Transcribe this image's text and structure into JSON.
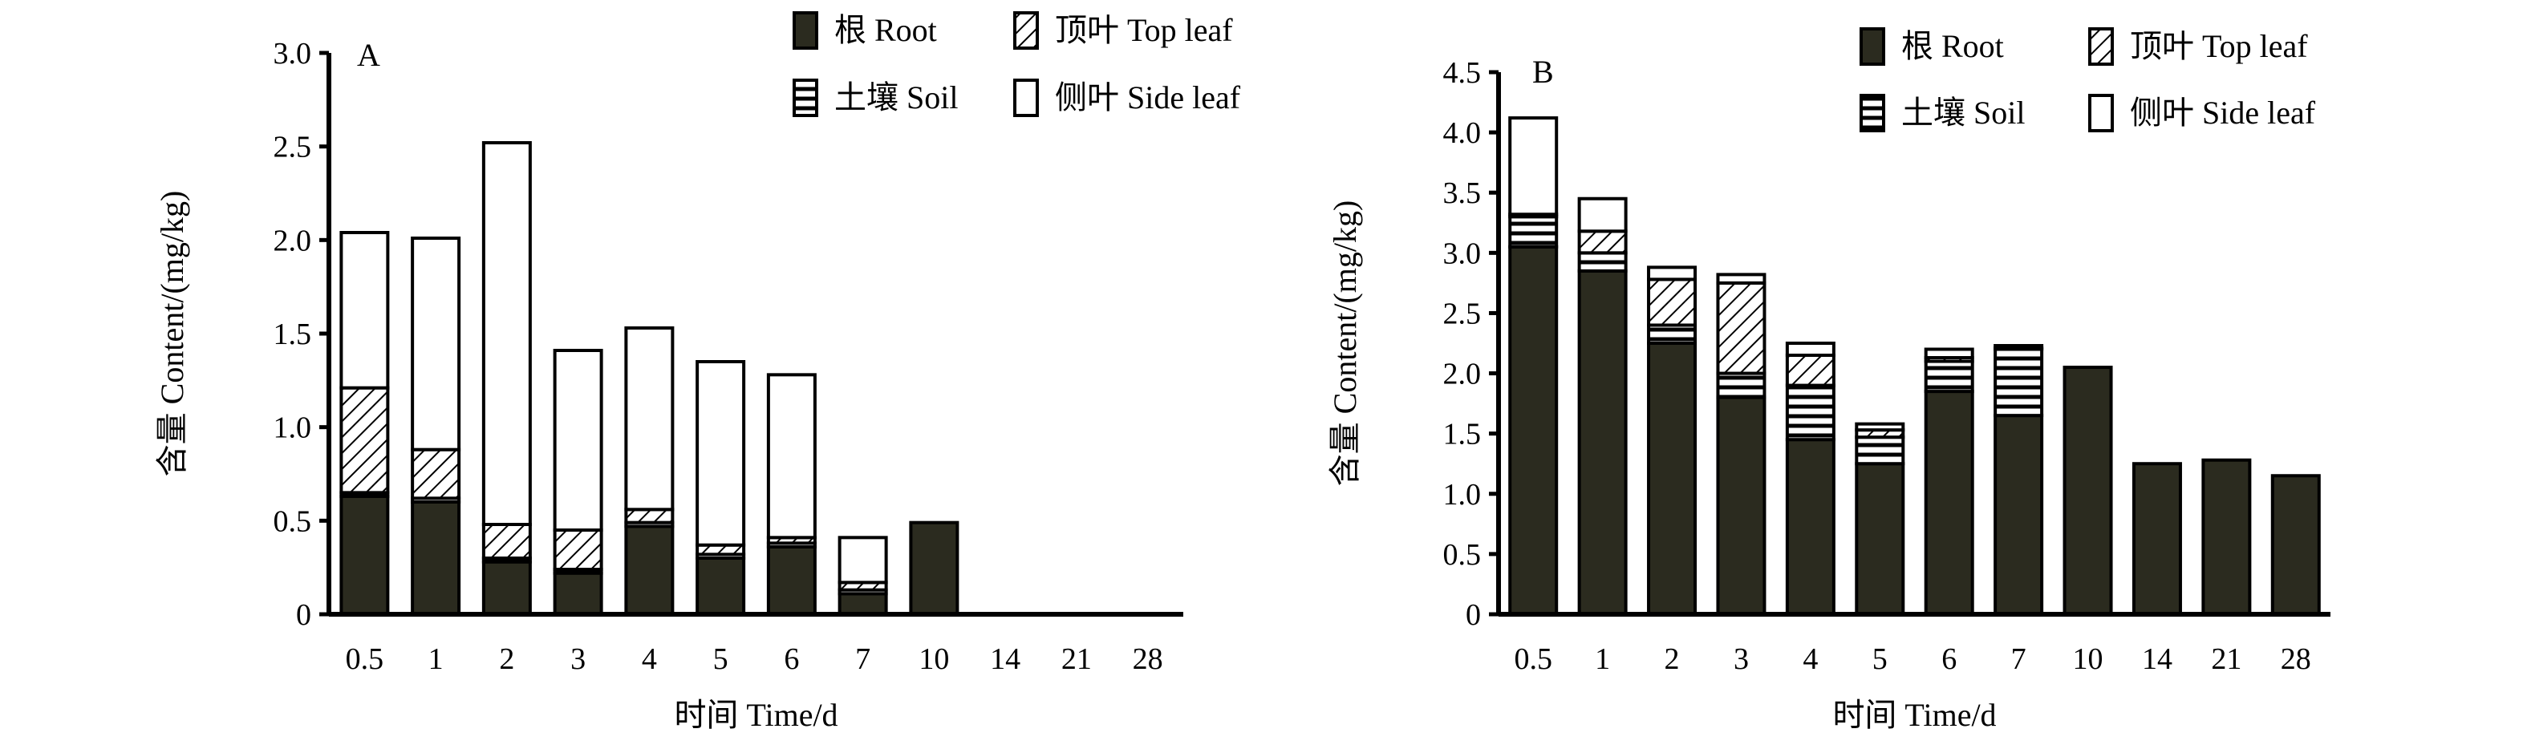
{
  "colors": {
    "root": "#2b2b1f",
    "stroke": "#000000",
    "background": "#ffffff"
  },
  "legend_items": [
    {
      "key": "root",
      "label": "根 Root",
      "pattern": "solid-dark"
    },
    {
      "key": "top_leaf",
      "label": "顶叶 Top leaf",
      "pattern": "diagonal-hatch"
    },
    {
      "key": "soil",
      "label": "土壤 Soil",
      "pattern": "horizontal-stripes"
    },
    {
      "key": "side_leaf",
      "label": "侧叶 Side leaf",
      "pattern": "white"
    }
  ],
  "chart_data": [
    {
      "panel": "A",
      "type": "bar",
      "stacked": true,
      "title": "A",
      "xlabel": "时间 Time/d",
      "ylabel": "含量 Content/(mg/kg)",
      "ylim": [
        0,
        3.0
      ],
      "yticks": [
        "0",
        "0.5",
        "1.0",
        "1.5",
        "2.0",
        "2.5",
        "3.0"
      ],
      "ytick_values": [
        0,
        0.5,
        1.0,
        1.5,
        2.0,
        2.5,
        3.0
      ],
      "categories": [
        "0.5",
        "1",
        "2",
        "3",
        "4",
        "5",
        "6",
        "7",
        "10",
        "14",
        "21",
        "28"
      ],
      "legend_position": "top-right",
      "series": [
        {
          "key": "root",
          "name": "根 Root",
          "values": [
            0.63,
            0.6,
            0.28,
            0.22,
            0.47,
            0.3,
            0.36,
            0.11,
            0.49,
            0,
            0,
            0
          ]
        },
        {
          "key": "soil",
          "name": "土壤 Soil",
          "values": [
            0.02,
            0.02,
            0.02,
            0.02,
            0.02,
            0.02,
            0.02,
            0.02,
            0,
            0,
            0,
            0
          ]
        },
        {
          "key": "top_leaf",
          "name": "顶叶 Top leaf",
          "values": [
            0.56,
            0.26,
            0.18,
            0.21,
            0.07,
            0.05,
            0.03,
            0.04,
            0,
            0,
            0,
            0
          ]
        },
        {
          "key": "side_leaf",
          "name": "侧叶 Side leaf",
          "values": [
            0.83,
            1.13,
            2.04,
            0.96,
            0.97,
            0.98,
            0.87,
            0.24,
            0,
            0,
            0,
            0
          ]
        }
      ]
    },
    {
      "panel": "B",
      "type": "bar",
      "stacked": true,
      "title": "B",
      "xlabel": "时间 Time/d",
      "ylabel": "含量 Content/(mg/kg)",
      "ylim": [
        0,
        4.5
      ],
      "yticks": [
        "0",
        "0.5",
        "1.0",
        "1.5",
        "2.0",
        "2.5",
        "3.0",
        "3.5",
        "4.0",
        "4.5"
      ],
      "ytick_values": [
        0,
        0.5,
        1.0,
        1.5,
        2.0,
        2.5,
        3.0,
        3.5,
        4.0,
        4.5
      ],
      "categories": [
        "0.5",
        "1",
        "2",
        "3",
        "4",
        "5",
        "6",
        "7",
        "10",
        "14",
        "21",
        "28"
      ],
      "legend_position": "top-right",
      "series": [
        {
          "key": "root",
          "name": "根 Root",
          "values": [
            3.05,
            2.85,
            2.25,
            1.8,
            1.45,
            1.25,
            1.85,
            1.65,
            2.05,
            1.25,
            1.28,
            1.15
          ]
        },
        {
          "key": "soil",
          "name": "土壤 Soil",
          "values": [
            0.25,
            0.15,
            0.15,
            0.2,
            0.45,
            0.22,
            0.25,
            0.55,
            0,
            0,
            0,
            0
          ]
        },
        {
          "key": "top_leaf",
          "name": "顶叶 Top leaf",
          "values": [
            0.02,
            0.18,
            0.38,
            0.75,
            0.25,
            0.06,
            0.03,
            0.01,
            0,
            0,
            0,
            0
          ]
        },
        {
          "key": "side_leaf",
          "name": "侧叶 Side leaf",
          "values": [
            0.8,
            0.27,
            0.1,
            0.07,
            0.1,
            0.05,
            0.07,
            0.02,
            0,
            0,
            0,
            0
          ]
        }
      ]
    }
  ]
}
